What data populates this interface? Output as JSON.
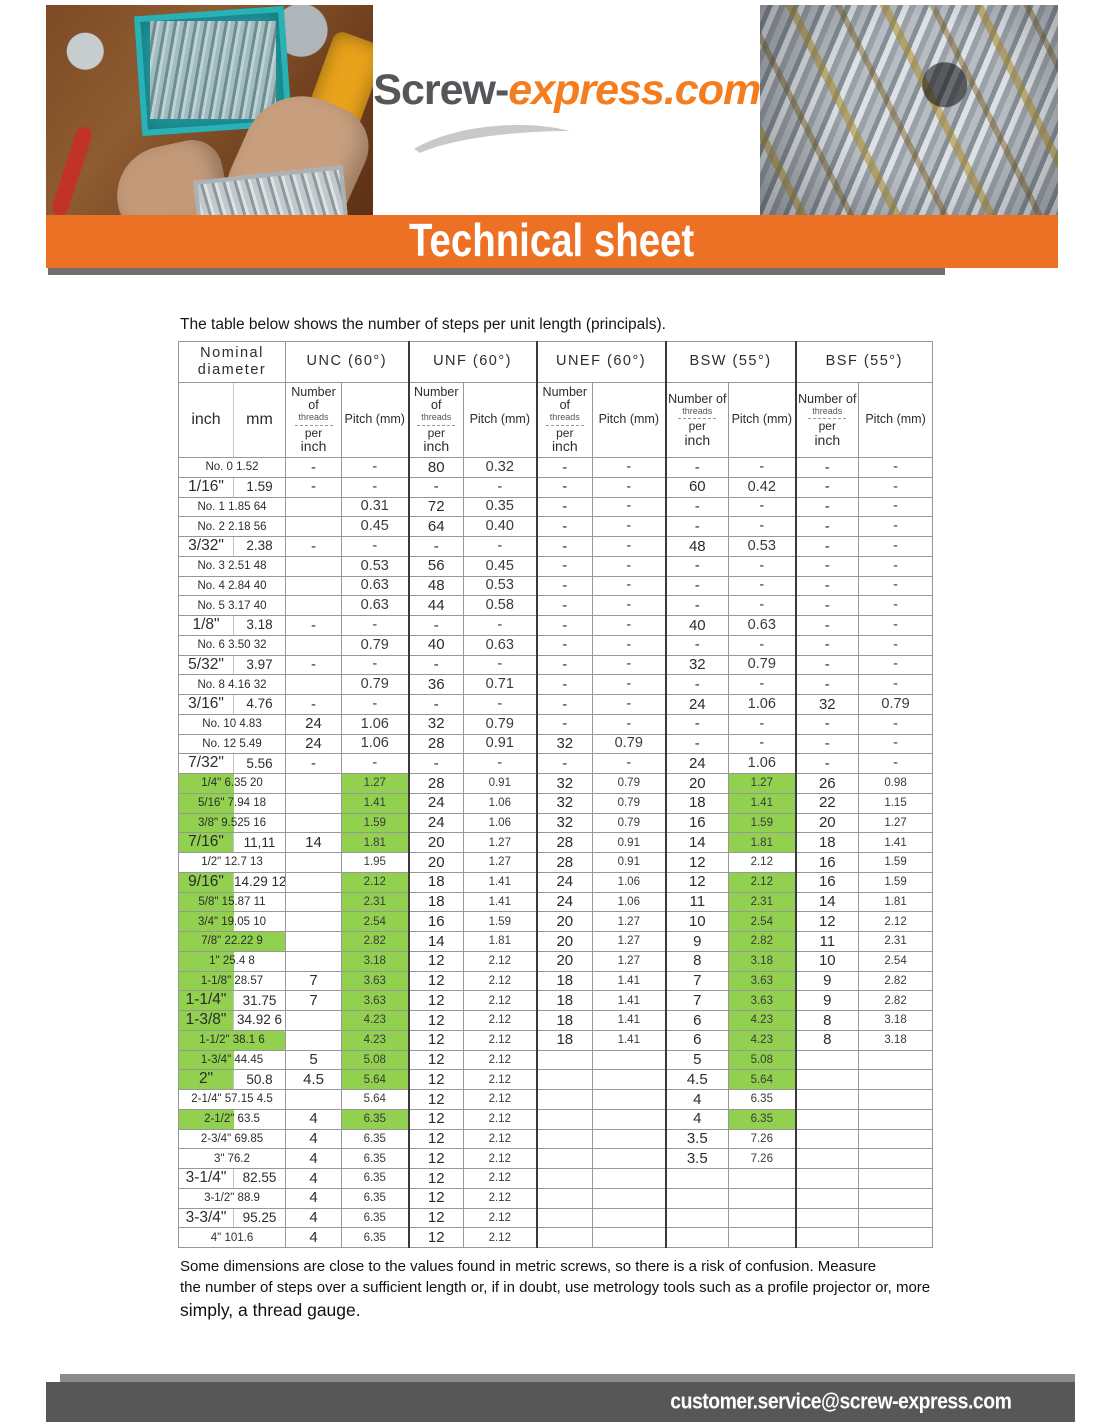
{
  "header": {
    "brand_prefix": "Screw-",
    "brand_suffix": "express.com",
    "banner_title": "Technical sheet"
  },
  "intro": "The table below shows the number of steps per unit length (principals).",
  "colors": {
    "accent_orange": "#ED7125",
    "highlight_green": "#92D050",
    "bar_gray": "#575757",
    "brand_gray": "#55565A",
    "brand_orange": "#F47D20"
  },
  "table": {
    "group_headers": [
      "Nominal diameter",
      "UNC (60°)",
      "UNF (60°)",
      "UNEF (60°)",
      "BSW (55°)",
      "BSF (55°)"
    ],
    "col_headers": {
      "inch": "inch",
      "mm": "mm",
      "threads_l1": "Number of",
      "threads_l2": "threads",
      "threads_l3": "per",
      "threads_l4": "inch",
      "pitch": "Pitch (mm)"
    },
    "rows": [
      {
        "type": "merged",
        "label": "No. 0 1.52",
        "green_label": "none",
        "green_unc": false,
        "green_bsw": false,
        "cells": [
          "-",
          "-",
          "80",
          "0.32",
          "-",
          "-",
          "-",
          "-",
          "-",
          "-"
        ]
      },
      {
        "type": "split",
        "inch": "1/16\"",
        "mm": "1.59",
        "green_label": "none",
        "green_unc": false,
        "green_bsw": false,
        "cells": [
          "-",
          "-",
          "-",
          "-",
          "-",
          "-",
          "60",
          "0.42",
          "-",
          "-"
        ]
      },
      {
        "type": "merged",
        "label": "No. 1 1.85 64",
        "green_label": "none",
        "green_unc": false,
        "green_bsw": false,
        "cells": [
          "",
          "0.31",
          "72",
          "0.35",
          "-",
          "-",
          "-",
          "-",
          "-",
          "-"
        ]
      },
      {
        "type": "merged",
        "label": "No. 2 2.18 56",
        "green_label": "none",
        "green_unc": false,
        "green_bsw": false,
        "cells": [
          "",
          "0.45",
          "64",
          "0.40",
          "-",
          "-",
          "-",
          "-",
          "-",
          "-"
        ]
      },
      {
        "type": "split",
        "inch": "3/32\"",
        "mm": "2.38",
        "green_label": "none",
        "green_unc": false,
        "green_bsw": false,
        "cells": [
          "-",
          "-",
          "-",
          "-",
          "-",
          "-",
          "48",
          "0.53",
          "-",
          "-"
        ]
      },
      {
        "type": "merged",
        "label": "No. 3 2.51 48",
        "green_label": "none",
        "green_unc": false,
        "green_bsw": false,
        "cells": [
          "",
          "0.53",
          "56",
          "0.45",
          "-",
          "-",
          "-",
          "-",
          "-",
          "-"
        ]
      },
      {
        "type": "merged",
        "label": "No. 4 2.84 40",
        "green_label": "none",
        "green_unc": false,
        "green_bsw": false,
        "cells": [
          "",
          "0.63",
          "48",
          "0.53",
          "-",
          "-",
          "-",
          "-",
          "-",
          "-"
        ]
      },
      {
        "type": "merged",
        "label": "No. 5 3.17 40",
        "green_label": "none",
        "green_unc": false,
        "green_bsw": false,
        "cells": [
          "",
          "0.63",
          "44",
          "0.58",
          "-",
          "-",
          "-",
          "-",
          "-",
          "-"
        ]
      },
      {
        "type": "split",
        "inch": "1/8\"",
        "mm": "3.18",
        "green_label": "none",
        "green_unc": false,
        "green_bsw": false,
        "cells": [
          "-",
          "-",
          "-",
          "-",
          "-",
          "-",
          "40",
          "0.63",
          "-",
          "-"
        ]
      },
      {
        "type": "merged",
        "label": "No. 6 3.50 32",
        "green_label": "none",
        "green_unc": false,
        "green_bsw": false,
        "cells": [
          "",
          "0.79",
          "40",
          "0.63",
          "-",
          "-",
          "-",
          "-",
          "-",
          "-"
        ]
      },
      {
        "type": "split",
        "inch": "5/32\"",
        "mm": "3.97",
        "green_label": "none",
        "green_unc": false,
        "green_bsw": false,
        "cells": [
          "-",
          "-",
          "-",
          "-",
          "-",
          "-",
          "32",
          "0.79",
          "-",
          "-"
        ]
      },
      {
        "type": "merged",
        "label": "No. 8 4.16 32",
        "green_label": "none",
        "green_unc": false,
        "green_bsw": false,
        "cells": [
          "",
          "0.79",
          "36",
          "0.71",
          "-",
          "-",
          "-",
          "-",
          "-",
          "-"
        ]
      },
      {
        "type": "split",
        "inch": "3/16\"",
        "mm": "4.76",
        "green_label": "none",
        "green_unc": false,
        "green_bsw": false,
        "cells": [
          "-",
          "-",
          "-",
          "-",
          "-",
          "-",
          "24",
          "1.06",
          "32",
          "0.79"
        ]
      },
      {
        "type": "merged",
        "label": "No. 10 4.83",
        "green_label": "none",
        "green_unc": false,
        "green_bsw": false,
        "cells": [
          "24",
          "1.06",
          "32",
          "0.79",
          "-",
          "-",
          "-",
          "-",
          "-",
          "-"
        ]
      },
      {
        "type": "merged",
        "label": "No. 12 5.49",
        "green_label": "none",
        "green_unc": false,
        "green_bsw": false,
        "cells": [
          "24",
          "1.06",
          "28",
          "0.91",
          "32",
          "0.79",
          "-",
          "-",
          "-",
          "-"
        ]
      },
      {
        "type": "split",
        "inch": "7/32\"",
        "mm": "5.56",
        "green_label": "none",
        "green_unc": false,
        "green_bsw": false,
        "cells": [
          "-",
          "-",
          "-",
          "-",
          "-",
          "-",
          "24",
          "1.06",
          "-",
          "-"
        ]
      },
      {
        "type": "merged",
        "label": "1/4\" 6.35 20",
        "green_label": "inch",
        "green_unc": true,
        "green_bsw": true,
        "cells": [
          "",
          "1.27",
          "28",
          "0.91",
          "32",
          "0.79",
          "20",
          "1.27",
          "26",
          "0.98"
        ]
      },
      {
        "type": "merged",
        "label": "5/16\" 7.94 18",
        "green_label": "inch",
        "green_unc": true,
        "green_bsw": true,
        "cells": [
          "",
          "1.41",
          "24",
          "1.06",
          "32",
          "0.79",
          "18",
          "1.41",
          "22",
          "1.15"
        ]
      },
      {
        "type": "merged",
        "label": "3/8\" 9.525 16",
        "green_label": "inch",
        "green_unc": true,
        "green_bsw": true,
        "cells": [
          "",
          "1.59",
          "24",
          "1.06",
          "32",
          "0.79",
          "16",
          "1.59",
          "20",
          "1.27"
        ]
      },
      {
        "type": "split",
        "inch": "7/16\"",
        "mm": "11,11",
        "green_label": "inch",
        "green_unc": true,
        "green_bsw": true,
        "cells": [
          "14",
          "1.81",
          "20",
          "1.27",
          "28",
          "0.91",
          "14",
          "1.81",
          "18",
          "1.41"
        ]
      },
      {
        "type": "merged",
        "label": "1/2\" 12.7 13",
        "green_label": "none",
        "green_unc": false,
        "green_bsw": false,
        "cells": [
          "",
          "1.95",
          "20",
          "1.27",
          "28",
          "0.91",
          "12",
          "2.12",
          "16",
          "1.59"
        ]
      },
      {
        "type": "split",
        "inch": "9/16\"",
        "mm": "14.29 12",
        "green_label": "inch",
        "green_unc": true,
        "green_bsw": true,
        "cells": [
          "",
          "2.12",
          "18",
          "1.41",
          "24",
          "1.06",
          "12",
          "2.12",
          "16",
          "1.59"
        ]
      },
      {
        "type": "merged",
        "label": "5/8\" 15.87 11",
        "green_label": "inch",
        "green_unc": true,
        "green_bsw": true,
        "cells": [
          "",
          "2.31",
          "18",
          "1.41",
          "24",
          "1.06",
          "11",
          "2.31",
          "14",
          "1.81"
        ]
      },
      {
        "type": "merged",
        "label": "3/4\" 19.05 10",
        "green_label": "inch",
        "green_unc": true,
        "green_bsw": true,
        "cells": [
          "",
          "2.54",
          "16",
          "1.59",
          "20",
          "1.27",
          "10",
          "2.54",
          "12",
          "2.12"
        ]
      },
      {
        "type": "merged",
        "label": "7/8\" 22.22 9",
        "green_label": "pill",
        "green_unc": true,
        "green_bsw": true,
        "cells": [
          "",
          "2.82",
          "14",
          "1.81",
          "20",
          "1.27",
          "9",
          "2.82",
          "11",
          "2.31"
        ]
      },
      {
        "type": "merged",
        "label": "1\" 25.4 8",
        "green_label": "inch",
        "green_unc": true,
        "green_bsw": true,
        "cells": [
          "",
          "3.18",
          "12",
          "2.12",
          "20",
          "1.27",
          "8",
          "3.18",
          "10",
          "2.54"
        ]
      },
      {
        "type": "merged",
        "label": "1-1/8\" 28.57",
        "green_label": "inch",
        "green_unc": true,
        "green_bsw": true,
        "cells": [
          "7",
          "3.63",
          "12",
          "2.12",
          "18",
          "1.41",
          "7",
          "3.63",
          "9",
          "2.82"
        ]
      },
      {
        "type": "split",
        "inch": "1-1/4\"",
        "mm": "31.75",
        "green_label": "inch",
        "green_unc": true,
        "green_bsw": true,
        "cells": [
          "7",
          "3.63",
          "12",
          "2.12",
          "18",
          "1.41",
          "7",
          "3.63",
          "9",
          "2.82"
        ]
      },
      {
        "type": "split",
        "inch": "1-3/8\"",
        "mm": "34.92 6",
        "green_label": "inch",
        "green_unc": true,
        "green_bsw": true,
        "cells": [
          "",
          "4.23",
          "12",
          "2.12",
          "18",
          "1.41",
          "6",
          "4.23",
          "8",
          "3.18"
        ]
      },
      {
        "type": "merged",
        "label": "1-1/2\" 38.1 6",
        "green_label": "pill",
        "green_unc": true,
        "green_bsw": true,
        "cells": [
          "",
          "4.23",
          "12",
          "2.12",
          "18",
          "1.41",
          "6",
          "4.23",
          "8",
          "3.18"
        ]
      },
      {
        "type": "merged",
        "label": "1-3/4\" 44.45",
        "green_label": "inch",
        "green_unc": true,
        "green_bsw": true,
        "cells": [
          "5",
          "5.08",
          "12",
          "2.12",
          "",
          "",
          "5",
          "5.08",
          "",
          ""
        ]
      },
      {
        "type": "split",
        "inch": "2\"",
        "mm": "50.8",
        "green_label": "inch",
        "green_unc": true,
        "green_bsw": true,
        "cells": [
          "4.5",
          "5.64",
          "12",
          "2.12",
          "",
          "",
          "4.5",
          "5.64",
          "",
          ""
        ]
      },
      {
        "type": "merged",
        "label": "2-1/4\" 57.15 4.5",
        "green_label": "none",
        "green_unc": false,
        "green_bsw": false,
        "cells": [
          "",
          "5.64",
          "12",
          "2.12",
          "",
          "",
          "4",
          "6.35",
          "",
          ""
        ]
      },
      {
        "type": "merged",
        "label": "2-1/2\" 63.5",
        "green_label": "inch",
        "green_unc": true,
        "green_bsw": true,
        "cells": [
          "4",
          "6.35",
          "12",
          "2.12",
          "",
          "",
          "4",
          "6.35",
          "",
          ""
        ]
      },
      {
        "type": "merged",
        "label": "2-3/4\" 69.85",
        "green_label": "none",
        "green_unc": false,
        "green_bsw": false,
        "cells": [
          "4",
          "6.35",
          "12",
          "2.12",
          "",
          "",
          "3.5",
          "7.26",
          "",
          ""
        ]
      },
      {
        "type": "merged",
        "label": "3\" 76.2",
        "green_label": "none",
        "green_unc": false,
        "green_bsw": false,
        "cells": [
          "4",
          "6.35",
          "12",
          "2.12",
          "",
          "",
          "3.5",
          "7.26",
          "",
          ""
        ]
      },
      {
        "type": "split",
        "inch": "3-1/4\"",
        "mm": "82.55",
        "green_label": "none",
        "green_unc": false,
        "green_bsw": false,
        "cells": [
          "4",
          "6.35",
          "12",
          "2.12",
          "",
          "",
          "",
          "",
          "",
          ""
        ]
      },
      {
        "type": "merged",
        "label": "3-1/2\" 88.9",
        "green_label": "none",
        "green_unc": false,
        "green_bsw": false,
        "cells": [
          "4",
          "6.35",
          "12",
          "2.12",
          "",
          "",
          "",
          "",
          "",
          ""
        ]
      },
      {
        "type": "split",
        "inch": "3-3/4\"",
        "mm": "95.25",
        "green_label": "none",
        "green_unc": false,
        "green_bsw": false,
        "cells": [
          "4",
          "6.35",
          "12",
          "2.12",
          "",
          "",
          "",
          "",
          "",
          ""
        ]
      },
      {
        "type": "merged",
        "label": "4\" 101.6",
        "green_label": "none",
        "green_unc": false,
        "green_bsw": false,
        "cells": [
          "4",
          "6.35",
          "12",
          "2.12",
          "",
          "",
          "",
          "",
          "",
          ""
        ]
      }
    ]
  },
  "note": {
    "line1": "Some dimensions are close to the values found in metric screws, so there is a risk of confusion. Measure",
    "line2": "the number of steps over a sufficient length or, if in doubt, use metrology tools such as a profile projector or, more",
    "line3": "simply, a thread gauge."
  },
  "bottom_bar": {
    "email": "customer.service@screw-express.com"
  }
}
